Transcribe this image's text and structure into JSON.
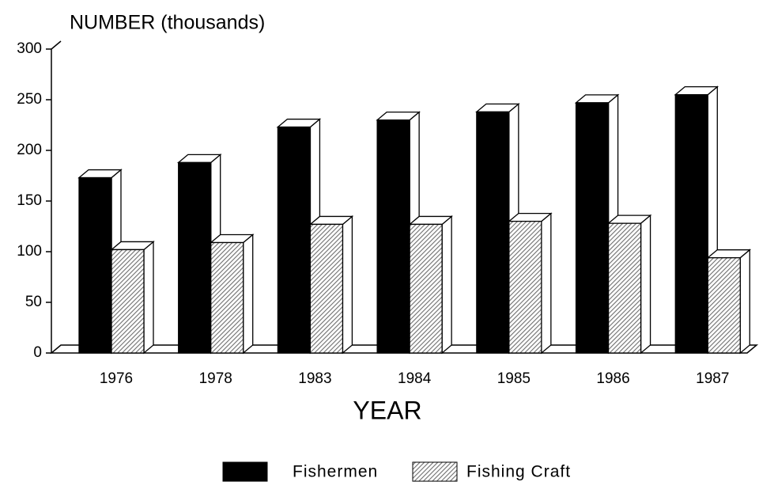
{
  "chart_data": {
    "type": "bar3d",
    "title": "NUMBER (thousands)",
    "x_label": "YEAR",
    "categories": [
      "1976",
      "1978",
      "1983",
      "1984",
      "1985",
      "1986",
      "1987"
    ],
    "series": [
      {
        "name": "Fishermen",
        "color": "#000000",
        "values": [
          173,
          188,
          223,
          230,
          238,
          247,
          255
        ]
      },
      {
        "name": "Fishing Craft",
        "color": "#8c8c8c",
        "values": [
          102,
          109,
          127,
          127,
          130,
          128,
          94
        ]
      }
    ],
    "ylim": [
      0,
      300
    ],
    "yticks": [
      0,
      50,
      100,
      150,
      200,
      250,
      300
    ],
    "legend": "bottom"
  }
}
